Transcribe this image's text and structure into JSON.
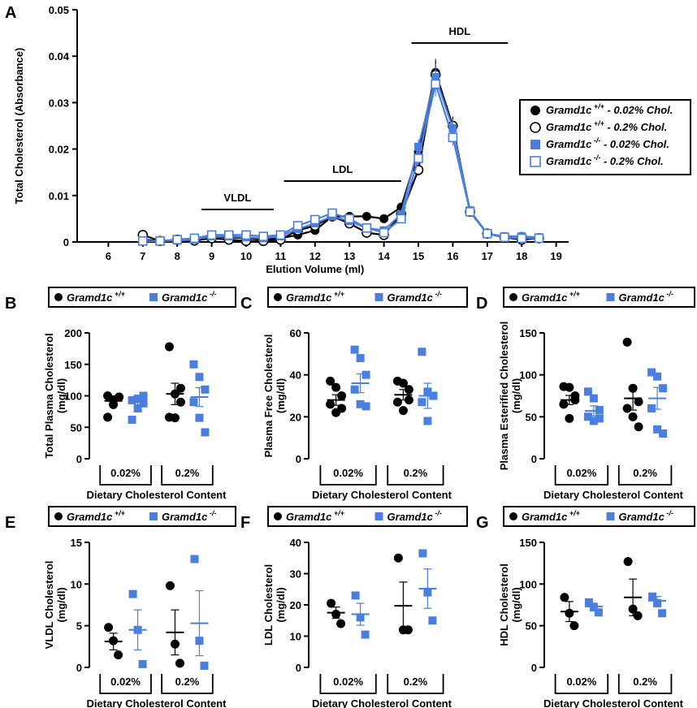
{
  "colors": {
    "wt": "#000000",
    "ko": "#4a7fe0",
    "axis": "#000000"
  },
  "legend_genotype": {
    "wt": "Gramd1c",
    "wt_sup": "+/+",
    "ko": "Gramd1c",
    "ko_sup": "-/-"
  },
  "legend_main": [
    {
      "gene": "Gramd1c",
      "sup": "+/+",
      "diet": " - 0.02% Chol."
    },
    {
      "gene": "Gramd1c",
      "sup": "+/+",
      "diet": " - 0.2% Chol."
    },
    {
      "gene": "Gramd1c",
      "sup": "-/-",
      "diet": " - 0.02% Chol."
    },
    {
      "gene": "Gramd1c",
      "sup": "-/-",
      "diet": " - 0.2% Chol."
    }
  ],
  "chart_data": [
    {
      "panel": "A",
      "type": "line",
      "xlabel": "Elution Volume (ml)",
      "ylabel": "Total Cholesterol (Absorbance)",
      "xlim": [
        5,
        19.2
      ],
      "ylim": [
        0,
        0.05
      ],
      "xticks": [
        "6",
        "7",
        "8",
        "9",
        "10",
        "11",
        "12",
        "13",
        "14",
        "15",
        "16",
        "17",
        "18",
        "19"
      ],
      "yticks": [
        "0",
        "0.01",
        "0.02",
        "0.03",
        "0.04",
        "0.05"
      ],
      "regions": [
        {
          "label": "VLDL",
          "from": 8.7,
          "to": 10.8
        },
        {
          "label": "LDL",
          "from": 11.1,
          "to": 14.5
        },
        {
          "label": "HDL",
          "from": 14.8,
          "to": 17.6
        }
      ],
      "x": [
        7,
        7.5,
        8,
        8.5,
        9,
        9.5,
        10,
        10.5,
        11,
        11.5,
        12,
        12.5,
        13,
        13.5,
        14,
        14.5,
        15,
        15.5,
        16,
        16.5,
        17,
        17.5,
        18,
        18.5
      ],
      "series": [
        {
          "name": "Gramd1c +/+ - 0.02% Chol.",
          "marker": "filled-circle",
          "values": [
            0.0005,
            0.0002,
            0.0003,
            0.0003,
            0.0012,
            0.001,
            0.0008,
            0.0005,
            0.0008,
            0.0015,
            0.0025,
            0.0055,
            0.0055,
            0.0055,
            0.005,
            0.0075,
            0.0195,
            0.0365,
            0.025,
            0.0065,
            0.0018,
            0.001,
            0.0012,
            0.0009
          ]
        },
        {
          "name": "Gramd1c +/+ - 0.2% Chol.",
          "marker": "open-circle",
          "values": [
            0.0015,
            0.0002,
            0.0005,
            0.0003,
            0.0008,
            0.0005,
            0.0002,
            0.0002,
            0.0005,
            0.0025,
            0.0035,
            0.0055,
            0.004,
            0.002,
            0.0015,
            0.006,
            0.0155,
            0.036,
            0.025,
            0.0065,
            0.0018,
            0.001,
            0.0005,
            0.0008
          ]
        },
        {
          "name": "Gramd1c -/- - 0.02% Chol.",
          "marker": "filled-square",
          "values": [
            0.0002,
            0.0002,
            0.0003,
            0.0005,
            0.0012,
            0.0012,
            0.001,
            0.0008,
            0.0012,
            0.0028,
            0.004,
            0.0055,
            0.0045,
            0.003,
            0.0025,
            0.006,
            0.0205,
            0.0355,
            0.0245,
            0.0068,
            0.0018,
            0.0012,
            0.0012,
            0.001
          ]
        },
        {
          "name": "Gramd1c -/- - 0.2% Chol.",
          "marker": "open-square",
          "values": [
            0.0002,
            0.0002,
            0.0005,
            0.0008,
            0.0015,
            0.0015,
            0.0015,
            0.0012,
            0.0015,
            0.0035,
            0.0048,
            0.0062,
            0.005,
            0.003,
            0.002,
            0.005,
            0.018,
            0.034,
            0.0225,
            0.0065,
            0.0018,
            0.001,
            0.0008,
            0.0008
          ]
        }
      ]
    },
    {
      "panel": "B",
      "type": "scatter",
      "ylabel_lines": [
        "Total Plasma Cholesterol",
        "(mg/dl)"
      ],
      "xlabel": "Dietary Cholesterol Content",
      "groups": [
        "0.02%",
        "0.2%"
      ],
      "ylim": [
        0,
        200
      ],
      "yticks": [
        "0",
        "50",
        "100",
        "150",
        "200"
      ],
      "wt": [
        [
          100,
          93,
          98,
          66,
          86,
          98
        ],
        [
          178,
          103,
          90,
          66,
          65,
          112
        ]
      ],
      "ko": [
        [
          93,
          95,
          88,
          62,
          80,
          100
        ],
        [
          150,
          130,
          110,
          90,
          65,
          42
        ]
      ],
      "wt_mean": [
        92,
        103
      ],
      "wt_sem": [
        8,
        17
      ],
      "ko_mean": [
        93,
        98
      ],
      "ko_sem": [
        8,
        15
      ]
    },
    {
      "panel": "C",
      "type": "scatter",
      "ylabel_lines": [
        "Plasma Free Cholesterol",
        "(mg/dl)"
      ],
      "xlabel": "Dietary Cholesterol Content",
      "groups": [
        "0.02%",
        "0.2%"
      ],
      "ylim": [
        0,
        60
      ],
      "yticks": [
        "0",
        "20",
        "40",
        "60"
      ],
      "wt": [
        [
          37,
          34,
          30,
          26,
          22,
          24
        ],
        [
          37,
          36,
          33,
          27,
          23,
          28
        ]
      ],
      "ko": [
        [
          52,
          48,
          40,
          33,
          26,
          25
        ],
        [
          51,
          32,
          30,
          27,
          18,
          30
        ]
      ],
      "wt_mean": [
        28,
        30.5
      ],
      "wt_sem": [
        2.5,
        2.5
      ],
      "ko_mean": [
        36,
        30
      ],
      "ko_sem": [
        4.5,
        6
      ]
    },
    {
      "panel": "D",
      "type": "scatter",
      "ylabel_lines": [
        "Plasma Esterified Cholesterol",
        "(mg/dl)"
      ],
      "xlabel": "Dietary Cholesterol Content",
      "groups": [
        "0.02%",
        "0.2%"
      ],
      "ylim": [
        0,
        150
      ],
      "yticks": [
        "0",
        "50",
        "100",
        "150"
      ],
      "wt": [
        [
          86,
          85,
          75,
          65,
          48,
          70
        ],
        [
          139,
          84,
          68,
          60,
          50,
          38
        ]
      ],
      "ko": [
        [
          80,
          72,
          58,
          50,
          45,
          48
        ],
        [
          103,
          98,
          84,
          60,
          35,
          30
        ]
      ],
      "wt_mean": [
        70,
        72
      ],
      "wt_sem": [
        5.5,
        14
      ],
      "ko_mean": [
        57,
        72
      ],
      "ko_sem": [
        6,
        13
      ]
    },
    {
      "panel": "E",
      "type": "scatter",
      "ylabel_lines": [
        "VLDL Cholesterol",
        "(mg/dl)"
      ],
      "xlabel": "Dietary Cholesterol Content",
      "groups": [
        "0.02%",
        "0.2%"
      ],
      "ylim": [
        0,
        15
      ],
      "yticks": [
        "0",
        "5",
        "10",
        "15"
      ],
      "wt": [
        [
          4.8,
          3.2,
          1.5
        ],
        [
          9.8,
          2.8,
          0.5
        ]
      ],
      "ko": [
        [
          8.8,
          4.5,
          0.4
        ],
        [
          13,
          3.2,
          0.2
        ]
      ],
      "wt_mean": [
        3.1,
        4.2
      ],
      "wt_sem": [
        1,
        2.7
      ],
      "ko_mean": [
        4.5,
        5.3
      ],
      "ko_sem": [
        2.4,
        3.9
      ]
    },
    {
      "panel": "F",
      "type": "scatter",
      "ylabel_lines": [
        "LDL Cholesterol",
        "(mg/dl)"
      ],
      "xlabel": "Dietary Cholesterol Content",
      "groups": [
        "0.02%",
        "0.2%"
      ],
      "ylim": [
        0,
        40
      ],
      "yticks": [
        "0",
        "10",
        "20",
        "30",
        "40"
      ],
      "wt": [
        [
          20.5,
          17,
          14
        ],
        [
          35,
          12,
          12
        ]
      ],
      "ko": [
        [
          23,
          16,
          10.5
        ],
        [
          36.5,
          24,
          15
        ]
      ],
      "wt_mean": [
        17.5,
        19.7
      ],
      "wt_sem": [
        1.8,
        7.6
      ],
      "ko_mean": [
        17,
        25.2
      ],
      "ko_sem": [
        3.5,
        6.3
      ]
    },
    {
      "panel": "G",
      "type": "scatter",
      "ylabel_lines": [
        "HDL Cholesterol",
        "(mg/dl)"
      ],
      "xlabel": "Dietary Cholesterol Content",
      "groups": [
        "0.02%",
        "0.2%"
      ],
      "ylim": [
        0,
        150
      ],
      "yticks": [
        "0",
        "50",
        "100",
        "150"
      ],
      "wt": [
        [
          84,
          65,
          50
        ],
        [
          127,
          70,
          62
        ]
      ],
      "ko": [
        [
          78,
          72,
          66
        ],
        [
          85,
          77,
          65
        ]
      ],
      "wt_mean": [
        67,
        84
      ],
      "wt_sem": [
        12,
        22
      ],
      "ko_mean": [
        73,
        80
      ],
      "ko_sem": [
        4,
        5
      ]
    }
  ]
}
